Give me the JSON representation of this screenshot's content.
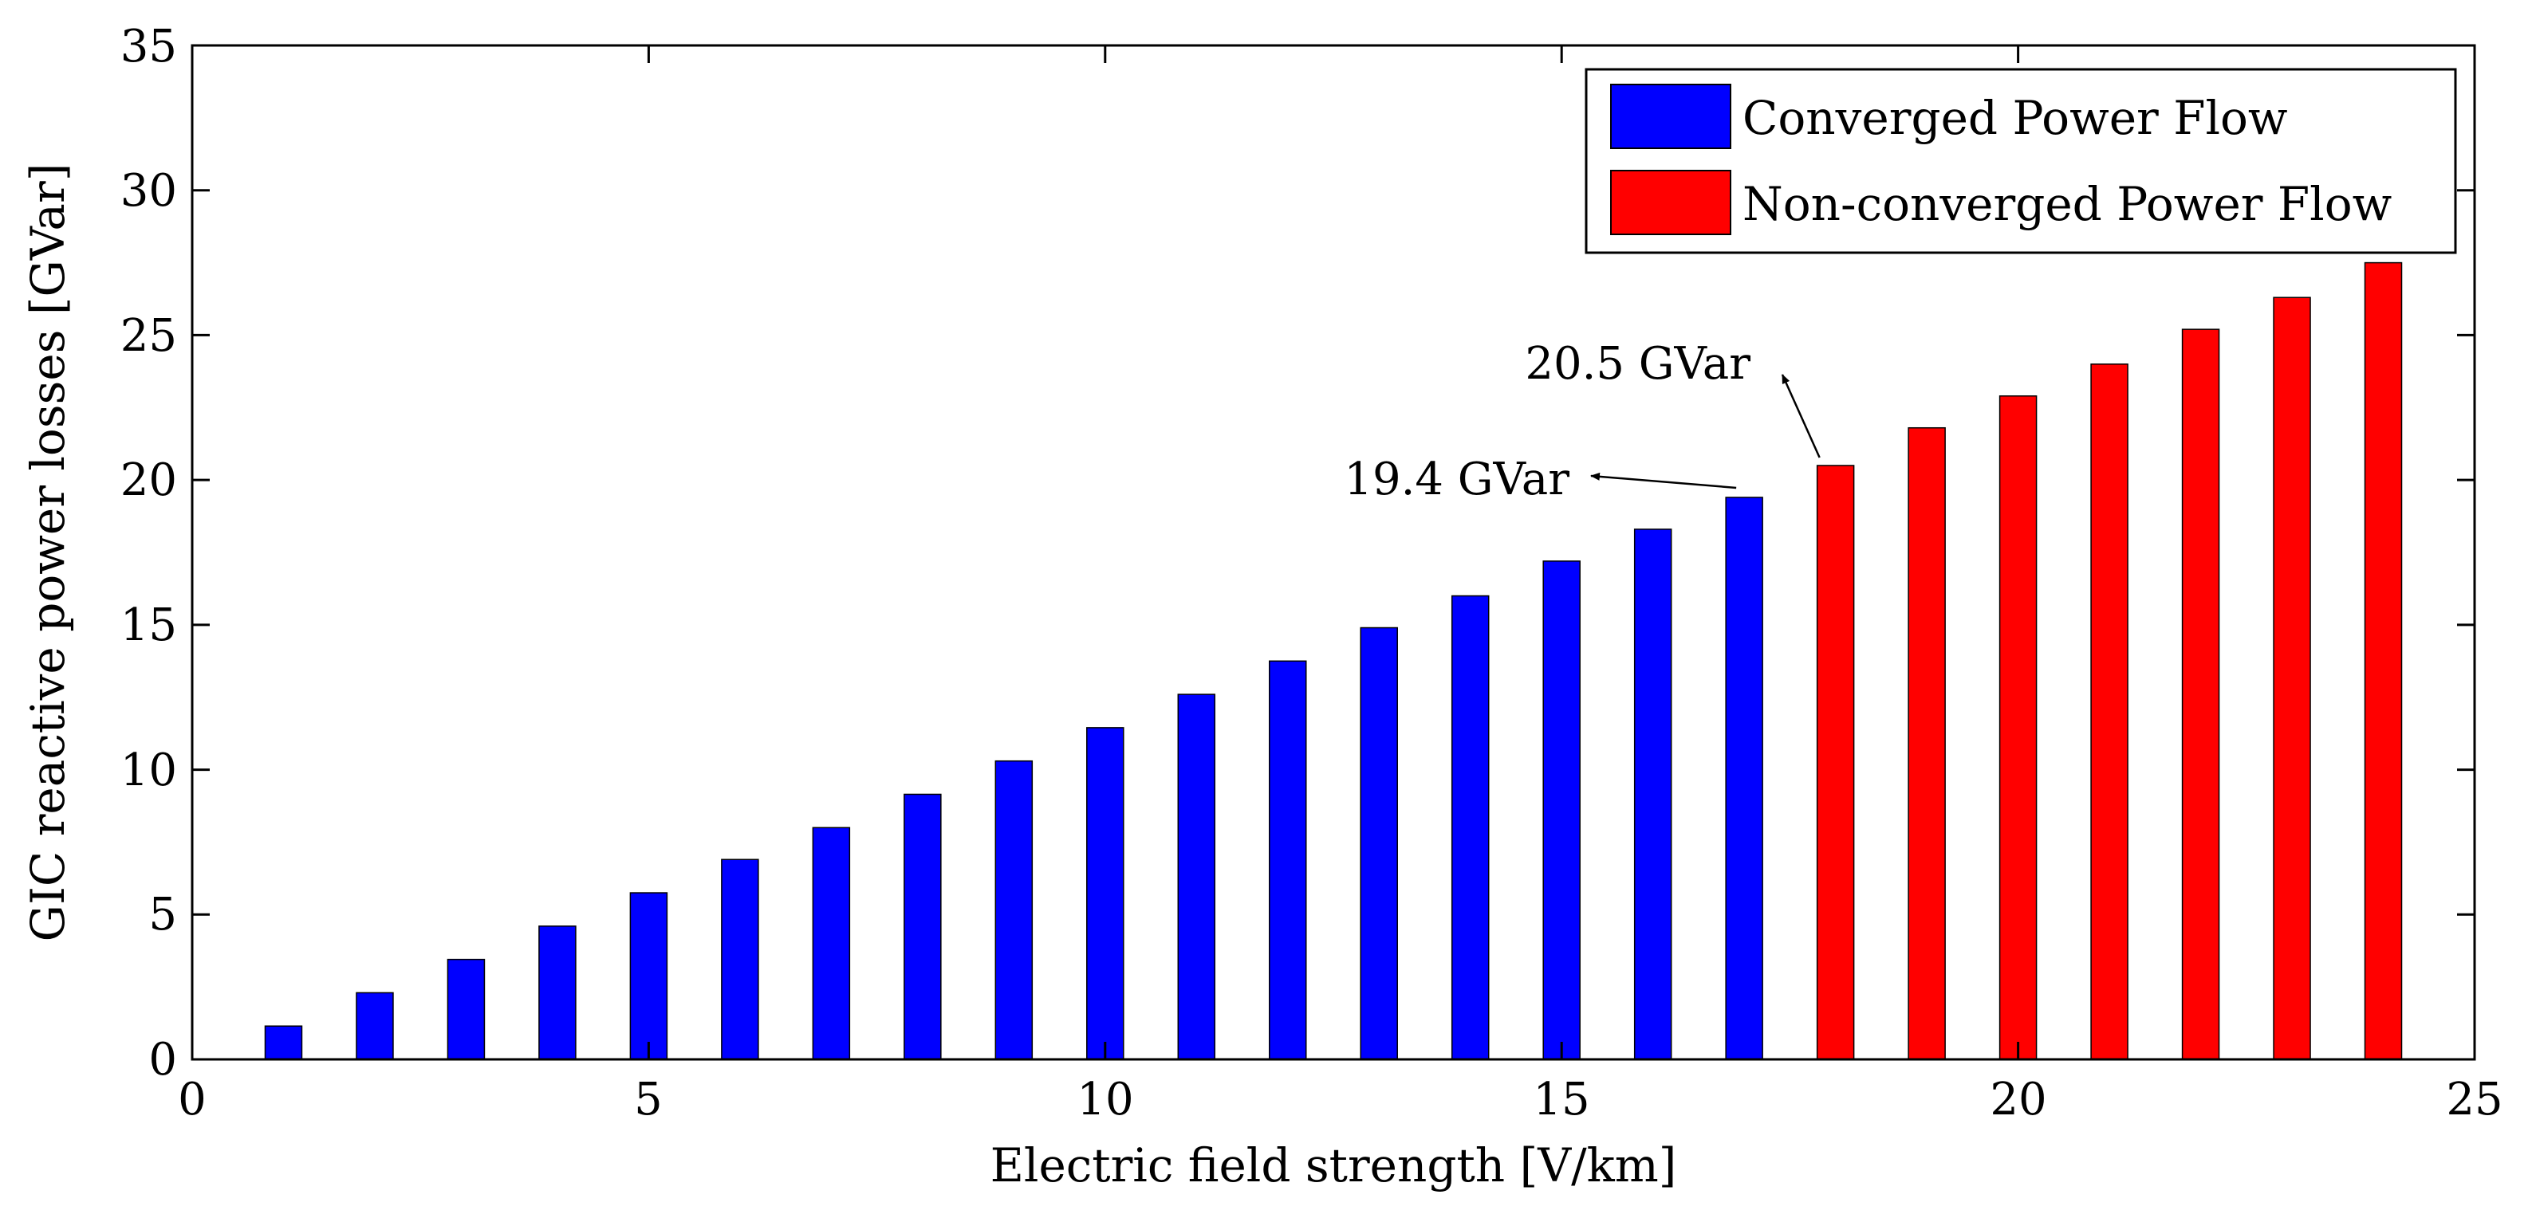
{
  "chart_data": {
    "type": "bar",
    "xlabel": "Electric field strength [V/km]",
    "ylabel": "GIC reactive power losses [GVar]",
    "xlim": [
      0,
      25
    ],
    "ylim": [
      0,
      35
    ],
    "x_ticks": [
      "0",
      "5",
      "10",
      "15",
      "20",
      "25"
    ],
    "y_ticks": [
      "0",
      "5",
      "10",
      "15",
      "20",
      "25",
      "30",
      "35"
    ],
    "grid": false,
    "legend_position": "top-right",
    "series": [
      {
        "name": "Converged Power Flow",
        "color": "#0000ff",
        "x": [
          1,
          2,
          3,
          4,
          5,
          6,
          7,
          8,
          9,
          10,
          11,
          12,
          13,
          14,
          15,
          16,
          17
        ],
        "values": [
          1.15,
          2.3,
          3.45,
          4.6,
          5.75,
          6.9,
          8.0,
          9.15,
          10.3,
          11.45,
          12.6,
          13.75,
          14.9,
          16.0,
          17.2,
          18.3,
          19.4
        ]
      },
      {
        "name": "Non-converged Power Flow",
        "color": "#ff0000",
        "x": [
          18,
          19,
          20,
          21,
          22,
          23,
          24
        ],
        "values": [
          20.5,
          21.8,
          22.9,
          24.0,
          25.2,
          26.3,
          27.5
        ]
      }
    ],
    "annotations": [
      {
        "text": "19.4 GVar",
        "x": 17,
        "y": 19.4
      },
      {
        "text": "20.5 GVar",
        "x": 18,
        "y": 20.5
      }
    ]
  }
}
